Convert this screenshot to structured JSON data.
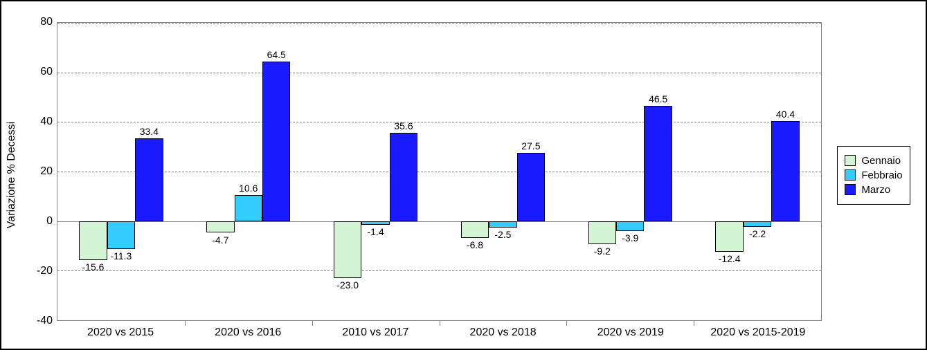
{
  "chart": {
    "type": "bar",
    "background_color": "#ffffff",
    "border_color": "#000000",
    "grid_color": "#808080",
    "text_color": "#000000",
    "ylabel": "Variazione % Decessi",
    "label_fontsize": 16,
    "tick_fontsize": 16,
    "data_label_fontsize": 14,
    "ylim": [
      -40,
      80
    ],
    "ytick_step": 20,
    "yticks": [
      -40,
      -20,
      0,
      20,
      40,
      60,
      80
    ],
    "categories": [
      "2020 vs 2015",
      "2020 vs 2016",
      "2010 vs 2017",
      "2020 vs 2018",
      "2020 vs 2019",
      "2020 vs 2015-2019"
    ],
    "series": [
      {
        "name": "Gennaio",
        "color": "#d4f5d4",
        "values": [
          -15.6,
          -4.7,
          -23.0,
          -6.8,
          -9.2,
          -12.4
        ]
      },
      {
        "name": "Febbraio",
        "color": "#33ccff",
        "values": [
          -11.3,
          10.6,
          -1.4,
          -2.5,
          -3.9,
          -2.2
        ]
      },
      {
        "name": "Marzo",
        "color": "#1a1aff",
        "values": [
          33.4,
          64.5,
          35.6,
          27.5,
          46.5,
          40.4
        ]
      }
    ],
    "bar_border_color": "#000000",
    "bar_border_width": 1,
    "bar_width_ratio": 0.22,
    "group_gap_ratio": 0.34,
    "legend_border_color": "#000000"
  }
}
